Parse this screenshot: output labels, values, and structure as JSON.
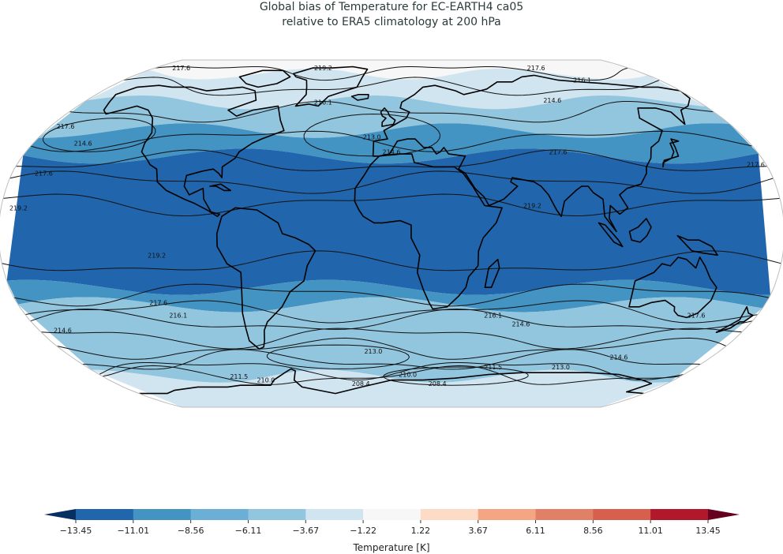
{
  "title": {
    "line1": "Global bias of Temperature for EC-EARTH4 ca05",
    "line2": "relative to ERA5 climatology at 200 hPa"
  },
  "map": {
    "projection": "Robinson",
    "fill_bands": [
      {
        "color": "#f7f7f7",
        "lat_top": 90,
        "lat_bottom": 78
      },
      {
        "color": "#d1e5f0",
        "lat_top": 78,
        "lat_bottom": 62
      },
      {
        "color": "#92c5de",
        "lat_top": 62,
        "lat_bottom": 48
      },
      {
        "color": "#4393c3",
        "lat_top": 48,
        "lat_bottom": 36
      },
      {
        "color": "#2166ac",
        "lat_top": 36,
        "lat_bottom": -25
      },
      {
        "color": "#4393c3",
        "lat_top": -25,
        "lat_bottom": -33
      },
      {
        "color": "#92c5de",
        "lat_top": -33,
        "lat_bottom": -68
      },
      {
        "color": "#d1e5f0",
        "lat_top": -68,
        "lat_bottom": -90
      }
    ],
    "contour_labels": [
      {
        "text": "219.2",
        "lon": -52,
        "lat": 82
      },
      {
        "text": "217.6",
        "lon": -160,
        "lat": 82
      },
      {
        "text": "217.6",
        "lon": 110,
        "lat": 82
      },
      {
        "text": "216.1",
        "lon": 128,
        "lat": 74
      },
      {
        "text": "214.6",
        "lon": 95,
        "lat": 63
      },
      {
        "text": "216.1",
        "lon": -40,
        "lat": 62
      },
      {
        "text": "217.6",
        "lon": -172,
        "lat": 50
      },
      {
        "text": "214.6",
        "lon": -155,
        "lat": 42
      },
      {
        "text": "213.0",
        "lon": -10,
        "lat": 45
      },
      {
        "text": "214.6",
        "lon": 0,
        "lat": 38
      },
      {
        "text": "217.6",
        "lon": 82,
        "lat": 38
      },
      {
        "text": "217.6",
        "lon": 175,
        "lat": 32
      },
      {
        "text": "217.6",
        "lon": -165,
        "lat": 28
      },
      {
        "text": "219.2",
        "lon": -172,
        "lat": 12
      },
      {
        "text": "219.2",
        "lon": 65,
        "lat": 13
      },
      {
        "text": "219.2",
        "lon": -108,
        "lat": -10
      },
      {
        "text": "217.6",
        "lon": -112,
        "lat": -32
      },
      {
        "text": "216.1",
        "lon": -105,
        "lat": -38
      },
      {
        "text": "216.1",
        "lon": 50,
        "lat": -38
      },
      {
        "text": "214.6",
        "lon": 65,
        "lat": -42
      },
      {
        "text": "217.6",
        "lon": 150,
        "lat": -38
      },
      {
        "text": "214.6",
        "lon": -168,
        "lat": -45
      },
      {
        "text": "213.0",
        "lon": -10,
        "lat": -55
      },
      {
        "text": "214.6",
        "lon": 128,
        "lat": -58
      },
      {
        "text": "211.5",
        "lon": 60,
        "lat": -63
      },
      {
        "text": "213.0",
        "lon": 100,
        "lat": -63
      },
      {
        "text": "211.5",
        "lon": -95,
        "lat": -68
      },
      {
        "text": "210.0",
        "lon": -80,
        "lat": -70
      },
      {
        "text": "210.0",
        "lon": 10,
        "lat": -67
      },
      {
        "text": "208.4",
        "lon": -20,
        "lat": -72
      },
      {
        "text": "208.4",
        "lon": 30,
        "lat": -72
      }
    ]
  },
  "colorbar": {
    "label": "Temperature [K]",
    "colors": [
      "#2166ac",
      "#4393c3",
      "#6baed6",
      "#92c5de",
      "#d1e5f0",
      "#f7f7f7",
      "#fddbc7",
      "#f4a582",
      "#e08066",
      "#d6604d",
      "#b2182b"
    ],
    "under_color": "#053061",
    "over_color": "#67001f",
    "ticks": [
      "−13.45",
      "−11.01",
      "−8.56",
      "−6.11",
      "−3.67",
      "−1.22",
      "1.22",
      "3.67",
      "6.11",
      "8.56",
      "11.01",
      "13.45"
    ]
  }
}
